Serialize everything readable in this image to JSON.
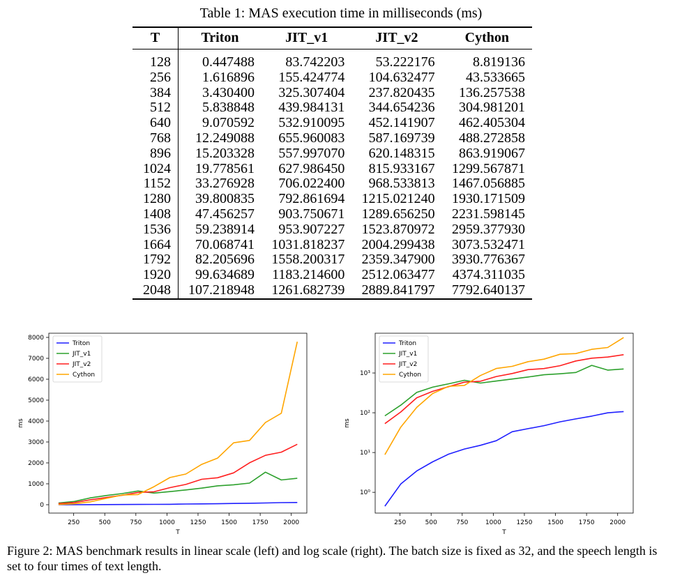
{
  "table": {
    "caption": "Table 1: MAS execution time in milliseconds (ms)",
    "headers": [
      "T",
      "Triton",
      "JIT_v1",
      "JIT_v2",
      "Cython"
    ],
    "rows": [
      [
        "128",
        "0.447488",
        "83.742203",
        "53.222176",
        "8.819136"
      ],
      [
        "256",
        "1.616896",
        "155.424774",
        "104.632477",
        "43.533665"
      ],
      [
        "384",
        "3.430400",
        "325.307404",
        "237.820435",
        "136.257538"
      ],
      [
        "512",
        "5.838848",
        "439.984131",
        "344.654236",
        "304.981201"
      ],
      [
        "640",
        "9.070592",
        "532.910095",
        "452.141907",
        "462.405304"
      ],
      [
        "768",
        "12.249088",
        "655.960083",
        "587.169739",
        "488.272858"
      ],
      [
        "896",
        "15.203328",
        "557.997070",
        "620.148315",
        "863.919067"
      ],
      [
        "1024",
        "19.778561",
        "627.986450",
        "815.933167",
        "1299.567871"
      ],
      [
        "1152",
        "33.276928",
        "706.022400",
        "968.533813",
        "1467.056885"
      ],
      [
        "1280",
        "39.800835",
        "792.861694",
        "1215.021240",
        "1930.171509"
      ],
      [
        "1408",
        "47.456257",
        "903.750671",
        "1289.656250",
        "2231.598145"
      ],
      [
        "1536",
        "59.238914",
        "953.907227",
        "1523.870972",
        "2959.377930"
      ],
      [
        "1664",
        "70.068741",
        "1031.818237",
        "2004.299438",
        "3073.532471"
      ],
      [
        "1792",
        "82.205696",
        "1558.200317",
        "2359.347900",
        "3930.776367"
      ],
      [
        "1920",
        "99.634689",
        "1183.214600",
        "2512.063477",
        "4374.311035"
      ],
      [
        "2048",
        "107.218948",
        "1261.682739",
        "2889.841797",
        "7792.640137"
      ]
    ]
  },
  "chart_data": [
    {
      "type": "line",
      "scale": "linear",
      "x": [
        128,
        256,
        384,
        512,
        640,
        768,
        896,
        1024,
        1152,
        1280,
        1408,
        1536,
        1664,
        1792,
        1920,
        2048
      ],
      "series": [
        {
          "name": "Triton",
          "color": "#1f1fff",
          "values": [
            0.447,
            1.617,
            3.43,
            5.839,
            9.071,
            12.249,
            15.203,
            19.779,
            33.277,
            39.801,
            47.456,
            59.239,
            70.069,
            82.206,
            99.635,
            107.219
          ]
        },
        {
          "name": "JIT_v1",
          "color": "#2ca02c",
          "values": [
            83.742,
            155.425,
            325.307,
            439.984,
            532.91,
            655.96,
            557.997,
            627.986,
            706.022,
            792.862,
            903.751,
            953.907,
            1031.818,
            1558.2,
            1183.215,
            1261.683
          ]
        },
        {
          "name": "JIT_v2",
          "color": "#ff1f1f",
          "values": [
            53.222,
            104.632,
            237.82,
            344.654,
            452.142,
            587.17,
            620.148,
            815.933,
            968.534,
            1215.021,
            1289.656,
            1523.871,
            2004.299,
            2359.348,
            2512.063,
            2889.842
          ]
        },
        {
          "name": "Cython",
          "color": "#ffa500",
          "values": [
            8.819,
            43.534,
            136.258,
            304.981,
            462.405,
            488.273,
            863.919,
            1299.568,
            1467.057,
            1930.172,
            2231.598,
            2959.378,
            3073.532,
            3930.776,
            4374.311,
            7792.64
          ]
        }
      ],
      "xlabel": "T",
      "ylabel": "ms",
      "xlim": [
        50,
        2125
      ],
      "ylim": [
        -400,
        8200
      ],
      "xticks": [
        250,
        500,
        750,
        1000,
        1250,
        1500,
        1750,
        2000
      ],
      "yticks": [
        0,
        1000,
        2000,
        3000,
        4000,
        5000,
        6000,
        7000,
        8000
      ],
      "legend": "top-left"
    },
    {
      "type": "line",
      "scale": "log",
      "x": [
        128,
        256,
        384,
        512,
        640,
        768,
        896,
        1024,
        1152,
        1280,
        1408,
        1536,
        1664,
        1792,
        1920,
        2048
      ],
      "series": [
        {
          "name": "Triton",
          "color": "#1f1fff",
          "values": [
            0.447,
            1.617,
            3.43,
            5.839,
            9.071,
            12.249,
            15.203,
            19.779,
            33.277,
            39.801,
            47.456,
            59.239,
            70.069,
            82.206,
            99.635,
            107.219
          ]
        },
        {
          "name": "JIT_v1",
          "color": "#2ca02c",
          "values": [
            83.742,
            155.425,
            325.307,
            439.984,
            532.91,
            655.96,
            557.997,
            627.986,
            706.022,
            792.862,
            903.751,
            953.907,
            1031.818,
            1558.2,
            1183.215,
            1261.683
          ]
        },
        {
          "name": "JIT_v2",
          "color": "#ff1f1f",
          "values": [
            53.222,
            104.632,
            237.82,
            344.654,
            452.142,
            587.17,
            620.148,
            815.933,
            968.534,
            1215.021,
            1289.656,
            1523.871,
            2004.299,
            2359.348,
            2512.063,
            2889.842
          ]
        },
        {
          "name": "Cython",
          "color": "#ffa500",
          "values": [
            8.819,
            43.534,
            136.258,
            304.981,
            462.405,
            488.273,
            863.919,
            1299.568,
            1467.057,
            1930.172,
            2231.598,
            2959.378,
            3073.532,
            3930.776,
            4374.311,
            7792.64
          ]
        }
      ],
      "xlabel": "T",
      "ylabel": "ms",
      "xlim": [
        50,
        2125
      ],
      "ylim": [
        0.3,
        10000
      ],
      "xticks": [
        250,
        500,
        750,
        1000,
        1250,
        1500,
        1750,
        2000
      ],
      "yticks": [
        1,
        10,
        100,
        1000
      ],
      "ytick_labels": [
        "10⁰",
        "10¹",
        "10²",
        "10³"
      ],
      "legend": "top-left"
    }
  ],
  "figure_caption": "Figure 2: MAS benchmark results in linear scale (left) and log scale (right). The batch size is fixed as 32, and the speech length is set to four times of text length."
}
